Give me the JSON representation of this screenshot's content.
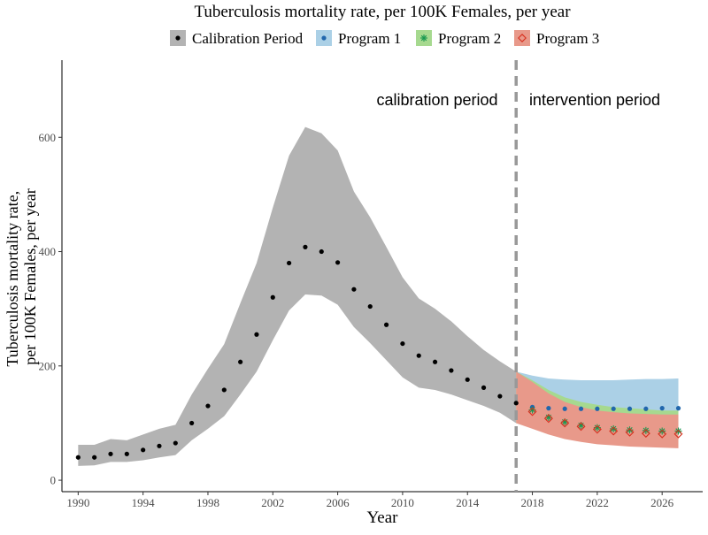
{
  "chart_data": {
    "type": "line",
    "title": "Tuberculosis mortality rate, per 100K Females, per year",
    "xlabel": "Year",
    "ylabel_lines": [
      "Tuberculosis mortality rate,",
      "per 100K Females, per year"
    ],
    "xlim": [
      1989,
      2028.5
    ],
    "ylim": [
      -20,
      735
    ],
    "x_ticks": [
      1990,
      1994,
      1998,
      2002,
      2006,
      2010,
      2014,
      2018,
      2022,
      2026
    ],
    "y_ticks": [
      0,
      200,
      400,
      600
    ],
    "legend_position": "top",
    "divider": {
      "x": 2017,
      "left_label": "calibration period",
      "right_label": "intervention period"
    },
    "series": [
      {
        "name": "Calibration Period",
        "color": "#000000",
        "band_color": "#b3b3b3",
        "marker": "dot",
        "x": [
          1990,
          1991,
          1992,
          1993,
          1994,
          1995,
          1996,
          1997,
          1998,
          1999,
          2000,
          2001,
          2002,
          2003,
          2004,
          2005,
          2006,
          2007,
          2008,
          2009,
          2010,
          2011,
          2012,
          2013,
          2014,
          2015,
          2016,
          2017
        ],
        "y": [
          40,
          40,
          46,
          46,
          53,
          60,
          65,
          100,
          130,
          158,
          207,
          255,
          320,
          380,
          408,
          400,
          381,
          334,
          304,
          272,
          239,
          218,
          207,
          192,
          176,
          162,
          147,
          135
        ],
        "lower": [
          25,
          26,
          32,
          32,
          35,
          40,
          44,
          70,
          90,
          112,
          150,
          190,
          245,
          297,
          325,
          323,
          307,
          268,
          240,
          210,
          180,
          162,
          158,
          150,
          140,
          130,
          118,
          100
        ],
        "upper": [
          62,
          62,
          72,
          70,
          80,
          90,
          97,
          150,
          195,
          238,
          310,
          380,
          477,
          568,
          618,
          607,
          577,
          505,
          460,
          408,
          355,
          318,
          300,
          278,
          252,
          228,
          208,
          190
        ]
      },
      {
        "name": "Program 1",
        "color": "#2166ac",
        "band_color": "#abd0e6",
        "marker": "dot",
        "x": [
          2017,
          2018,
          2019,
          2020,
          2021,
          2022,
          2023,
          2024,
          2025,
          2026,
          2027
        ],
        "y": [
          135,
          128,
          126,
          125,
          125,
          125,
          125,
          125,
          125,
          126,
          126
        ],
        "lower": [
          100,
          120,
          118,
          118,
          118,
          118,
          118,
          118,
          118,
          118,
          118
        ],
        "upper": [
          190,
          183,
          178,
          176,
          175,
          175,
          175,
          176,
          177,
          177,
          178
        ]
      },
      {
        "name": "Program 2",
        "color": "#1a9850",
        "band_color": "#a6d98f",
        "marker": "asterisk",
        "x": [
          2017,
          2018,
          2019,
          2020,
          2021,
          2022,
          2023,
          2024,
          2025,
          2026,
          2027
        ],
        "y": [
          135,
          123,
          110,
          102,
          96,
          92,
          90,
          88,
          87,
          86,
          86
        ],
        "lower": [
          100,
          92,
          82,
          75,
          70,
          66,
          63,
          61,
          59,
          58,
          57
        ],
        "upper": [
          190,
          175,
          158,
          145,
          137,
          132,
          128,
          126,
          124,
          122,
          122
        ]
      },
      {
        "name": "Program 3",
        "color": "#d7301f",
        "band_color": "#e8998a",
        "marker": "diamond",
        "x": [
          2017,
          2018,
          2019,
          2020,
          2021,
          2022,
          2023,
          2024,
          2025,
          2026,
          2027
        ],
        "y": [
          135,
          120,
          108,
          100,
          94,
          89,
          86,
          84,
          82,
          81,
          81
        ],
        "lower": [
          100,
          90,
          80,
          72,
          67,
          63,
          61,
          59,
          58,
          57,
          56
        ],
        "upper": [
          190,
          172,
          152,
          137,
          128,
          122,
          119,
          117,
          116,
          115,
          115
        ]
      }
    ]
  }
}
